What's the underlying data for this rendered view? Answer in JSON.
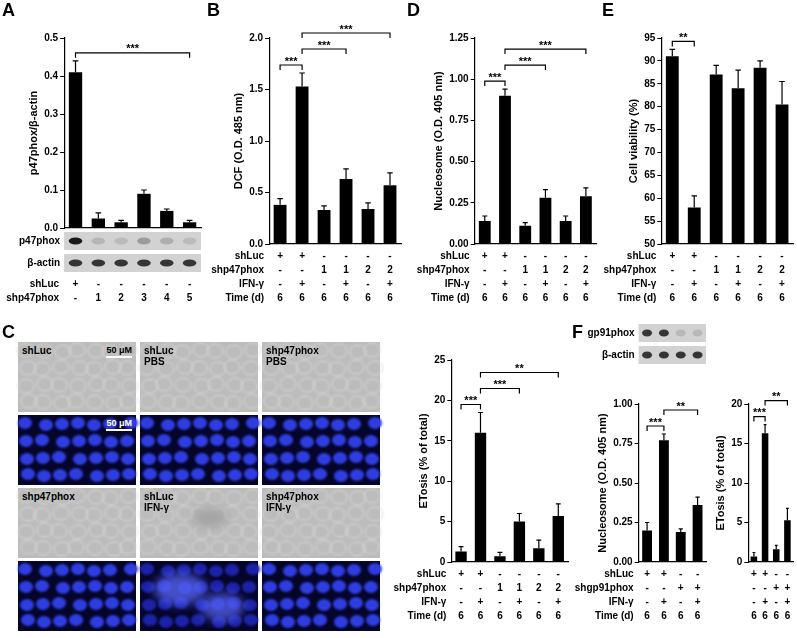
{
  "chart_data": [
    {
      "panel": "A",
      "type": "bar",
      "y_label": "p47phox/β-actin",
      "values": [
        0.41,
        0.025,
        0.015,
        0.09,
        0.045,
        0.015
      ],
      "errors": [
        0.03,
        0.015,
        0.005,
        0.01,
        0.005,
        0.005
      ],
      "ylim": [
        0,
        0.5
      ],
      "yticks": [
        {
          "value": 0,
          "label": "0.0"
        },
        {
          "value": 0.1,
          "label": "0.1"
        },
        {
          "value": 0.2,
          "label": "0.2"
        },
        {
          "value": 0.3,
          "label": "0.3"
        },
        {
          "value": 0.4,
          "label": "0.4"
        },
        {
          "value": 0.5,
          "label": "0.5"
        }
      ],
      "color": "#000000",
      "grid": false,
      "tick_labels": "y",
      "significance": [
        {
          "from": 0,
          "to": 5,
          "label": "***"
        }
      ],
      "blot": [
        "p47phox",
        "β-actin"
      ],
      "conditions": [
        {
          "label": "shLuc",
          "values": [
            "+",
            "-",
            "-",
            "-",
            "-",
            "-"
          ]
        },
        {
          "label": "shp47phox",
          "values": [
            "-",
            "1",
            "2",
            "3",
            "4",
            "5"
          ]
        }
      ]
    },
    {
      "panel": "B",
      "type": "bar",
      "y_label": "DCF (O.D. 485 nm)",
      "values": [
        0.38,
        1.53,
        0.33,
        0.63,
        0.34,
        0.57
      ],
      "errors": [
        0.06,
        0.13,
        0.04,
        0.1,
        0.06,
        0.12
      ],
      "ylim": [
        0,
        2
      ],
      "yticks": [
        {
          "value": 0,
          "label": "0.0"
        },
        {
          "value": 0.5,
          "label": "0.5"
        },
        {
          "value": 1,
          "label": "1.0"
        },
        {
          "value": 1.5,
          "label": "1.5"
        },
        {
          "value": 2,
          "label": "2.0"
        }
      ],
      "color": "#000000",
      "grid": false,
      "tick_labels": "y",
      "significance": [
        {
          "from": 0,
          "to": 1,
          "label": "***"
        },
        {
          "from": 1,
          "to": 3,
          "label": "***"
        },
        {
          "from": 1,
          "to": 5,
          "label": "***"
        }
      ],
      "conditions": [
        {
          "label": "shLuc",
          "values": [
            "+",
            "+",
            "-",
            "-",
            "-",
            "-"
          ]
        },
        {
          "label": "shp47phox",
          "values": [
            "-",
            "-",
            "1",
            "1",
            "2",
            "2"
          ]
        },
        {
          "label": "IFN-γ",
          "values": [
            "-",
            "+",
            "-",
            "+",
            "-",
            "+"
          ]
        },
        {
          "label": "Time (d)",
          "values": [
            "6",
            "6",
            "6",
            "6",
            "6",
            "6"
          ]
        }
      ]
    },
    {
      "panel": "D",
      "type": "bar",
      "y_label": "Nucleosome (O.D. 405 nm)",
      "values": [
        0.14,
        0.9,
        0.11,
        0.28,
        0.14,
        0.29
      ],
      "errors": [
        0.03,
        0.04,
        0.02,
        0.05,
        0.03,
        0.05
      ],
      "ylim": [
        0,
        1.25
      ],
      "yticks": [
        {
          "value": 0,
          "label": "0.00"
        },
        {
          "value": 0.25,
          "label": "0.25"
        },
        {
          "value": 0.5,
          "label": "0.50"
        },
        {
          "value": 0.75,
          "label": "0.75"
        },
        {
          "value": 1,
          "label": "1.00"
        },
        {
          "value": 1.25,
          "label": "1.25"
        }
      ],
      "color": "#000000",
      "grid": false,
      "tick_labels": "y",
      "significance": [
        {
          "from": 0,
          "to": 1,
          "label": "***"
        },
        {
          "from": 1,
          "to": 3,
          "label": "***"
        },
        {
          "from": 1,
          "to": 5,
          "label": "***"
        }
      ],
      "conditions": [
        {
          "label": "shLuc",
          "values": [
            "+",
            "+",
            "-",
            "-",
            "-",
            "-"
          ]
        },
        {
          "label": "shp47phox",
          "values": [
            "-",
            "-",
            "1",
            "1",
            "2",
            "2"
          ]
        },
        {
          "label": "IFN-γ",
          "values": [
            "-",
            "+",
            "-",
            "+",
            "-",
            "+"
          ]
        },
        {
          "label": "Time (d)",
          "values": [
            "6",
            "6",
            "6",
            "6",
            "6",
            "6"
          ]
        }
      ]
    },
    {
      "panel": "E",
      "type": "bar",
      "y_label": "Cell viability (%)",
      "values": [
        91,
        58,
        87,
        84,
        88.5,
        80.5
      ],
      "errors": [
        1.5,
        2.5,
        2,
        4,
        1.5,
        5
      ],
      "ylim": [
        50,
        95
      ],
      "yticks": [
        50,
        55,
        60,
        65,
        70,
        75,
        80,
        85,
        90,
        95
      ],
      "color": "#000000",
      "grid": false,
      "tick_labels": "y",
      "significance": [
        {
          "from": 0,
          "to": 1,
          "label": "**"
        }
      ],
      "conditions": [
        {
          "label": "shLuc",
          "values": [
            "+",
            "+",
            "-",
            "-",
            "-",
            "-"
          ]
        },
        {
          "label": "shp47phox",
          "values": [
            "-",
            "-",
            "1",
            "1",
            "2",
            "2"
          ]
        },
        {
          "label": "IFN-γ",
          "values": [
            "-",
            "+",
            "-",
            "+",
            "-",
            "+"
          ]
        },
        {
          "label": "Time (d)",
          "values": [
            "6",
            "6",
            "6",
            "6",
            "6",
            "6"
          ]
        }
      ]
    },
    {
      "type": "bar",
      "y_label": "ETosis (% of total)",
      "values": [
        1.3,
        16,
        0.7,
        5,
        1.7,
        5.7
      ],
      "errors": [
        0.6,
        2.5,
        0.5,
        1,
        1,
        1.5
      ],
      "ylim": [
        0,
        25
      ],
      "yticks": [
        0,
        5,
        10,
        15,
        20,
        25
      ],
      "color": "#000000",
      "grid": false,
      "tick_labels": "y",
      "significance": [
        {
          "from": 0,
          "to": 1,
          "label": "***"
        },
        {
          "from": 1,
          "to": 3,
          "label": "***"
        },
        {
          "from": 1,
          "to": 5,
          "label": "**"
        }
      ],
      "conditions": [
        {
          "label": "shLuc",
          "values": [
            "+",
            "+",
            "-",
            "-",
            "-",
            "-"
          ]
        },
        {
          "label": "shp47phox",
          "values": [
            "-",
            "-",
            "1",
            "1",
            "2",
            "2"
          ]
        },
        {
          "label": "IFN-γ",
          "values": [
            "-",
            "+",
            "-",
            "+",
            "-",
            "+"
          ]
        },
        {
          "label": "Time (d)",
          "values": [
            "6",
            "6",
            "6",
            "6",
            "6",
            "6"
          ]
        }
      ]
    },
    {
      "panel": "F",
      "type": "bar",
      "y_label": "Nucleosome (O.D. 405 nm)",
      "values": [
        0.2,
        0.77,
        0.19,
        0.36
      ],
      "errors": [
        0.05,
        0.04,
        0.02,
        0.05
      ],
      "ylim": [
        0,
        1
      ],
      "yticks": [
        {
          "value": 0,
          "label": "0.00"
        },
        {
          "value": 0.25,
          "label": "0.25"
        },
        {
          "value": 0.5,
          "label": "0.50"
        },
        {
          "value": 0.75,
          "label": "0.75"
        },
        {
          "value": 1,
          "label": "1.00"
        }
      ],
      "color": "#000000",
      "grid": false,
      "tick_labels": "y",
      "significance": [
        {
          "from": 0,
          "to": 1,
          "label": "***"
        },
        {
          "from": 1,
          "to": 3,
          "label": "**"
        }
      ],
      "blot": [
        "gp91phox",
        "β-actin"
      ],
      "conditions": [
        {
          "label": "shLuc",
          "values": [
            "+",
            "+",
            "-",
            "-"
          ]
        },
        {
          "label": "shgp91phox",
          "values": [
            "-",
            "-",
            "+",
            "+"
          ]
        },
        {
          "label": "IFN-γ",
          "values": [
            "-",
            "+",
            "-",
            "+"
          ]
        },
        {
          "label": "Time (d)",
          "values": [
            "6",
            "6",
            "6",
            "6"
          ]
        }
      ]
    },
    {
      "type": "bar",
      "y_label": "ETosis (% of total)",
      "values": [
        0.7,
        16.3,
        1.6,
        5.3
      ],
      "errors": [
        0.5,
        1.1,
        0.5,
        1.5
      ],
      "ylim": [
        0,
        20
      ],
      "yticks": [
        0,
        5,
        10,
        15,
        20
      ],
      "color": "#000000",
      "grid": false,
      "tick_labels": "y",
      "significance": [
        {
          "from": 0,
          "to": 1,
          "label": "***"
        },
        {
          "from": 1,
          "to": 3,
          "label": "**"
        }
      ],
      "conditions": [
        {
          "values": [
            "+",
            "+",
            "-",
            "-"
          ]
        },
        {
          "values": [
            "-",
            "-",
            "+",
            "+"
          ]
        },
        {
          "values": [
            "-",
            "+",
            "-",
            "+"
          ]
        },
        {
          "values": [
            "6",
            "6",
            "6",
            "6"
          ]
        }
      ]
    }
  ],
  "images": {
    "panel": "C",
    "scale_bar": "50 μM",
    "rows": [
      [
        "shLuc",
        "shLuc PBS",
        "shp47phox PBS"
      ],
      [
        "shp47phox",
        "shLuc IFN-γ",
        "shp47phox IFN-γ"
      ]
    ]
  }
}
